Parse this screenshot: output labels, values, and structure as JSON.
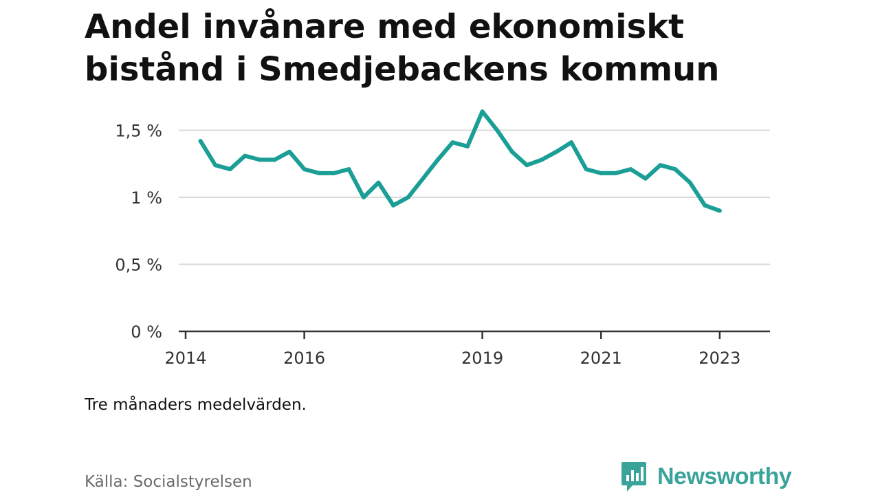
{
  "chart_data": {
    "type": "line",
    "title": "Andel invånare med ekonomiskt bistånd i Smedjebackens kommun",
    "xlabel": "",
    "ylabel": "",
    "ylim": [
      0,
      1.6
    ],
    "xlim": [
      "2014-01",
      "2023-07"
    ],
    "yticks": [
      {
        "value": 0,
        "label": "0 %"
      },
      {
        "value": 0.5,
        "label": "0,5 %"
      },
      {
        "value": 1,
        "label": "1 %"
      },
      {
        "value": 1.5,
        "label": "1,5 %"
      }
    ],
    "xticks": [
      {
        "value": "2014-01",
        "label": "2014"
      },
      {
        "value": "2016-01",
        "label": "2016"
      },
      {
        "value": "2019-01",
        "label": "2019"
      },
      {
        "value": "2021-01",
        "label": "2021"
      },
      {
        "value": "2023-01",
        "label": "2023"
      }
    ],
    "grid": true,
    "color": "#1a9e96",
    "series": [
      {
        "values": [
          {
            "x": "2014-04",
            "y": 1.42
          },
          {
            "x": "2014-07",
            "y": 1.24
          },
          {
            "x": "2014-10",
            "y": 1.21
          },
          {
            "x": "2015-01",
            "y": 1.31
          },
          {
            "x": "2015-04",
            "y": 1.28
          },
          {
            "x": "2015-07",
            "y": 1.28
          },
          {
            "x": "2015-10",
            "y": 1.34
          },
          {
            "x": "2016-01",
            "y": 1.21
          },
          {
            "x": "2016-04",
            "y": 1.18
          },
          {
            "x": "2016-07",
            "y": 1.18
          },
          {
            "x": "2016-10",
            "y": 1.21
          },
          {
            "x": "2017-01",
            "y": 1.0
          },
          {
            "x": "2017-04",
            "y": 1.11
          },
          {
            "x": "2017-07",
            "y": 0.94
          },
          {
            "x": "2017-10",
            "y": 1.0
          },
          {
            "x": "2018-01",
            "y": 1.14
          },
          {
            "x": "2018-04",
            "y": 1.28
          },
          {
            "x": "2018-07",
            "y": 1.41
          },
          {
            "x": "2018-10",
            "y": 1.38
          },
          {
            "x": "2019-01",
            "y": 1.64
          },
          {
            "x": "2019-04",
            "y": 1.5
          },
          {
            "x": "2019-07",
            "y": 1.34
          },
          {
            "x": "2019-10",
            "y": 1.24
          },
          {
            "x": "2020-01",
            "y": 1.28
          },
          {
            "x": "2020-04",
            "y": 1.34
          },
          {
            "x": "2020-07",
            "y": 1.41
          },
          {
            "x": "2020-10",
            "y": 1.21
          },
          {
            "x": "2021-01",
            "y": 1.18
          },
          {
            "x": "2021-04",
            "y": 1.18
          },
          {
            "x": "2021-07",
            "y": 1.21
          },
          {
            "x": "2021-10",
            "y": 1.14
          },
          {
            "x": "2022-01",
            "y": 1.24
          },
          {
            "x": "2022-04",
            "y": 1.21
          },
          {
            "x": "2022-07",
            "y": 1.11
          },
          {
            "x": "2022-10",
            "y": 0.94
          },
          {
            "x": "2023-01",
            "y": 0.9
          }
        ]
      }
    ]
  },
  "note": "Tre månaders medelvärden.",
  "source": "Källa: Socialstyrelsen",
  "brand": {
    "name": "Newsworthy",
    "icon": "newsworthy-chart-icon",
    "color": "#3aa39a"
  }
}
